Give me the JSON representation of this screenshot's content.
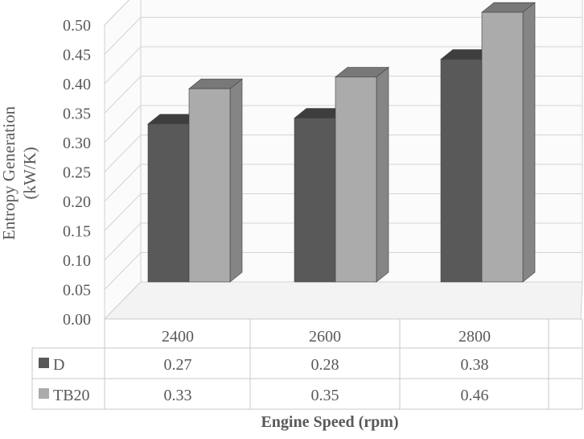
{
  "chart_data": {
    "type": "bar",
    "style": "3d-clustered-column-with-data-table",
    "categories": [
      "2400",
      "2600",
      "2800"
    ],
    "series": [
      {
        "name": "D",
        "values": [
          0.27,
          0.28,
          0.38
        ],
        "color": "#595959"
      },
      {
        "name": "TB20",
        "values": [
          0.33,
          0.35,
          0.46
        ],
        "color": "#ababab"
      }
    ],
    "ylabel_line1": "Entropy Generation",
    "ylabel_line2": "(kW/K)",
    "xlabel": "Engine Speed (rpm)",
    "ylim": [
      0,
      0.5
    ],
    "yticks": [
      "0.00",
      "0.05",
      "0.10",
      "0.15",
      "0.20",
      "0.25",
      "0.30",
      "0.35",
      "0.40",
      "0.45",
      "0.50"
    ],
    "data_table": {
      "rows": [
        {
          "series": "D",
          "cells": [
            "0.27",
            "0.28",
            "0.38"
          ]
        },
        {
          "series": "TB20",
          "cells": [
            "0.33",
            "0.35",
            "0.46"
          ]
        }
      ]
    },
    "grid": true,
    "legend": "data-table"
  }
}
